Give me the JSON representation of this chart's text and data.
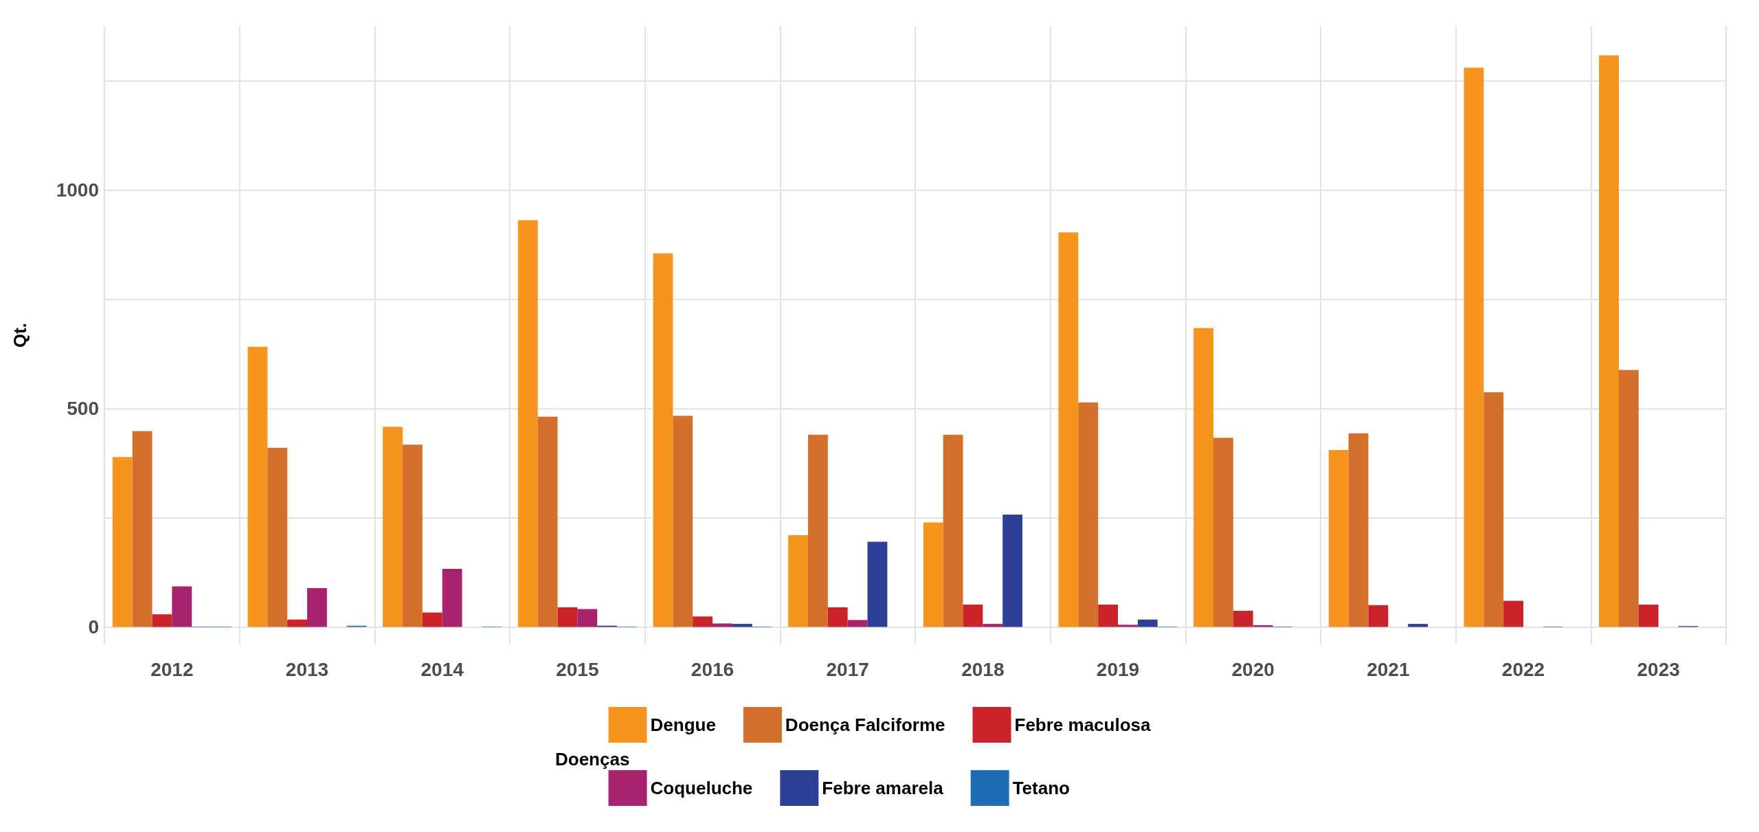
{
  "chart_data": {
    "type": "bar",
    "ylabel": "Qt.",
    "legend_title": "Doenças",
    "categories": [
      "2012",
      "2013",
      "2014",
      "2015",
      "2016",
      "2017",
      "2018",
      "2019",
      "2020",
      "2021",
      "2022",
      "2023"
    ],
    "series": [
      {
        "name": "Dengue",
        "color": "#f7941d",
        "values": [
          389,
          641,
          458,
          931,
          855,
          210,
          239,
          903,
          684,
          405,
          1280,
          1308
        ]
      },
      {
        "name": "Doença Falciforme",
        "color": "#d4702c",
        "values": [
          448,
          410,
          417,
          481,
          483,
          440,
          440,
          514,
          433,
          443,
          537,
          588
        ]
      },
      {
        "name": "Febre maculosa",
        "color": "#cc2229",
        "values": [
          29,
          17,
          33,
          45,
          24,
          45,
          51,
          51,
          37,
          50,
          60,
          51
        ]
      },
      {
        "name": "Coqueluche",
        "color": "#a8226e",
        "values": [
          93,
          89,
          133,
          41,
          8,
          16,
          7,
          5,
          4,
          0,
          null,
          null
        ]
      },
      {
        "name": "Febre amarela",
        "color": "#2e4095",
        "values": [
          1,
          0,
          null,
          3,
          7,
          195,
          257,
          17,
          1,
          7,
          1,
          2
        ]
      },
      {
        "name": "Tetano",
        "color": "#1f6db5",
        "values": [
          1,
          3,
          1,
          1,
          1,
          null,
          null,
          1,
          null,
          null,
          null,
          null
        ]
      }
    ],
    "ylim": [
      -40,
      1375
    ],
    "yticks": [
      0,
      {
        "value": 250,
        "label": null
      },
      500,
      {
        "value": 750,
        "label": null
      },
      1000,
      {
        "value": 1250,
        "label": null
      }
    ],
    "grid": true,
    "legend": "bottom"
  }
}
